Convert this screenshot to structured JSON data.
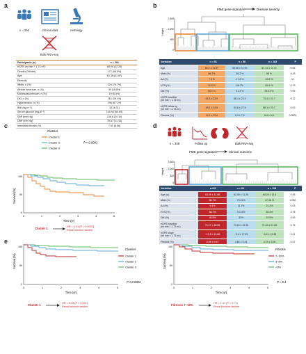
{
  "panels": {
    "a": "a",
    "b": "b",
    "c": "c",
    "d": "d",
    "e": "e"
  },
  "a": {
    "icons": [
      "n = 292",
      "Clinical data",
      "Histology",
      "Bulk RNA-seq"
    ],
    "table_header": [
      "Participants (n)",
      "n = 292"
    ],
    "rows": [
      [
        "eGFR (ml min⁻¹ 1.73 m²)",
        "68.94 (22.25)"
      ],
      [
        "Gender (%Male)",
        "172 (58.9%)"
      ],
      [
        "Age",
        "62.38 (11.87)"
      ],
      [
        "Ethnicity",
        ""
      ],
      [
        "White, n (%)",
        "224 (76.7%)"
      ],
      [
        "African American, n (%)",
        "49 (16.8%)"
      ],
      [
        "Multiracial/unknown, n (%)",
        "19 (6.5%)"
      ],
      [
        "DM, n (%)",
        "114 (39.1%)"
      ],
      [
        "Hypertension, n (%)",
        "196 (67.1%)"
      ],
      [
        "BMI (kg m⁻²)",
        "32 (8.31)"
      ],
      [
        "Serum glucose (mg dl⁻¹)",
        "145.95 (60.65)"
      ],
      [
        "SBP (mm Hg)",
        "136.6 (20.16)"
      ],
      [
        "DBP (mm Hg)",
        "76.57 (11.16)"
      ],
      [
        "Interstitial fibrosis (%)",
        "7.51 (8.56)"
      ]
    ]
  },
  "b": {
    "title_left": "FME gene signature",
    "title_right": "Disease severity",
    "ylabel": "Height",
    "yticks": [
      "1,500",
      "1,000",
      "500",
      "0"
    ],
    "header": [
      "Variables",
      "n = 51",
      "n = 58",
      "n = 183",
      "P"
    ],
    "rows": [
      [
        "Age",
        "65.2 ± 11.87",
        "63.66 ± 11.99",
        "61.14 ± 11.72",
        "0.06"
      ],
      [
        "Male (%)",
        "66.7%",
        "55.2 %",
        "58 %",
        "0.43"
      ],
      [
        "AA (%)",
        "7.8 %",
        "17.2 %",
        "22.5 %",
        "0.1"
      ],
      [
        "HTN (%)",
        "72.5 %",
        "66.7%",
        "69.9 %",
        "0.79"
      ],
      [
        "DM (%)",
        "50.9 %",
        "41.4 %",
        "34.44 %",
        "0.05"
      ],
      [
        "eGFR baseline\n(ml min⁻¹ 1.73 m²)",
        "64.3 ± 23.9",
        "68.4 ± 22.2",
        "70.4 ± 21.7",
        "0.22"
      ],
      [
        "eGFR follow up\n(ml min⁻¹ 1.73 m²)",
        "48.1 ± 24.5",
        "54.6 ± 27.5",
        "58.1 ± 23.7",
        "0.03"
      ],
      [
        "Fibrosis (%)",
        "12.2 ± 12.6",
        "6.9 ± 7.9",
        "6.4 ± 6.8",
        "0.0001"
      ]
    ]
  },
  "c": {
    "legend_title": "Clusters",
    "legend": [
      "Cluster 1",
      "Cluster 2",
      "Cluster 3"
    ],
    "pvalue": "P < 0.0001",
    "ylabel": "Survival (%)",
    "xlabel": "Time (yr)",
    "yticks": [
      "100",
      "50",
      "0"
    ],
    "xticks": [
      "0",
      "1",
      "2",
      "3",
      "4",
      "5"
    ],
    "note_label": "Cluster 1",
    "note_text": "HR = 4.31 (P < 0.0001)\nRenal function decline"
  },
  "d": {
    "icons": [
      "n = 245",
      "Follow up",
      "Bulk RNA-seq"
    ],
    "title_left": "FME gene signature",
    "title_right": "Clinical outcome",
    "ylabel": "Height",
    "yticks": [
      "1,500",
      "1,000",
      "500",
      "0"
    ],
    "header": [
      "Variables",
      "n=33",
      "n = 94",
      "n = 118",
      "P"
    ],
    "rows": [
      [
        "Age (yr)",
        "63.09 ± 11.68",
        "62.49 ± 11.26",
        "60.29 ± 12.4",
        "0.36"
      ],
      [
        "Male (%)",
        "66.7%",
        "70.21%",
        "47.46 %",
        "0.002"
      ],
      [
        "AA (%)",
        "9.1%",
        "11.7%",
        "21.2%",
        "0.03"
      ],
      [
        "HTN (%)",
        "66.7%",
        "70.21%",
        "65.3%",
        "0.78"
      ],
      [
        "DM (%)",
        "45.5%",
        "33%",
        "33.9%",
        "0.59"
      ],
      [
        "eGFR baseline\n(ml min⁻¹ 1.73 m²)",
        "70.27 ± 18.55",
        "73.18 ± 19.95",
        "71.45 ± 21.65",
        "0.75"
      ],
      [
        "eGFR slope\n(ml min⁻¹ 1.73 m²)",
        "−13.5 ± 14.86",
        "−9.4 ± 17.35",
        "−6.6 ± 13.38",
        "0.01"
      ],
      [
        "Fibrosis (%)",
        "8.89 ± 9.61",
        "4.64 ± 3.44",
        "4.19 ± 3.08",
        "0.47"
      ]
    ]
  },
  "e": {
    "left": {
      "legend_title": "Clusters",
      "legend": [
        "Cluster 1",
        "Cluster 2",
        "Cluster 3"
      ],
      "pvalue": "P < 0.0001",
      "ylabel": "Survival (%)",
      "xlabel": "Time (yr)",
      "yticks": [
        "100",
        "50",
        "0"
      ],
      "xticks": [
        "0",
        "1",
        "2",
        "3",
        "4",
        "5"
      ],
      "note_label": "Cluster 1",
      "note_text": "HR = 3.35 (P < 0.001)\nRenal function decline"
    },
    "right": {
      "legend_title": "Fibrosis",
      "legend": [
        "7–10%",
        "3–6%",
        "<3%"
      ],
      "pvalue": "P = 0.4",
      "ylabel": "Survival (%)",
      "xlabel": "Time (yr)",
      "yticks": [
        "100",
        "50",
        "0"
      ],
      "xticks": [
        "0",
        "1",
        "2",
        "3",
        "4",
        "5"
      ],
      "note_label": "Fibrosis 7–10%",
      "note_text": "HR = 1.17 (P = 0.71)\nRenal function decline"
    }
  },
  "colors": {
    "orange": "#e8822e",
    "blue": "#5aa9d6",
    "green": "#5cb85c",
    "red": "#c0272d",
    "navy": "#2d4a6e",
    "icon_blue": "#3a78b8"
  }
}
